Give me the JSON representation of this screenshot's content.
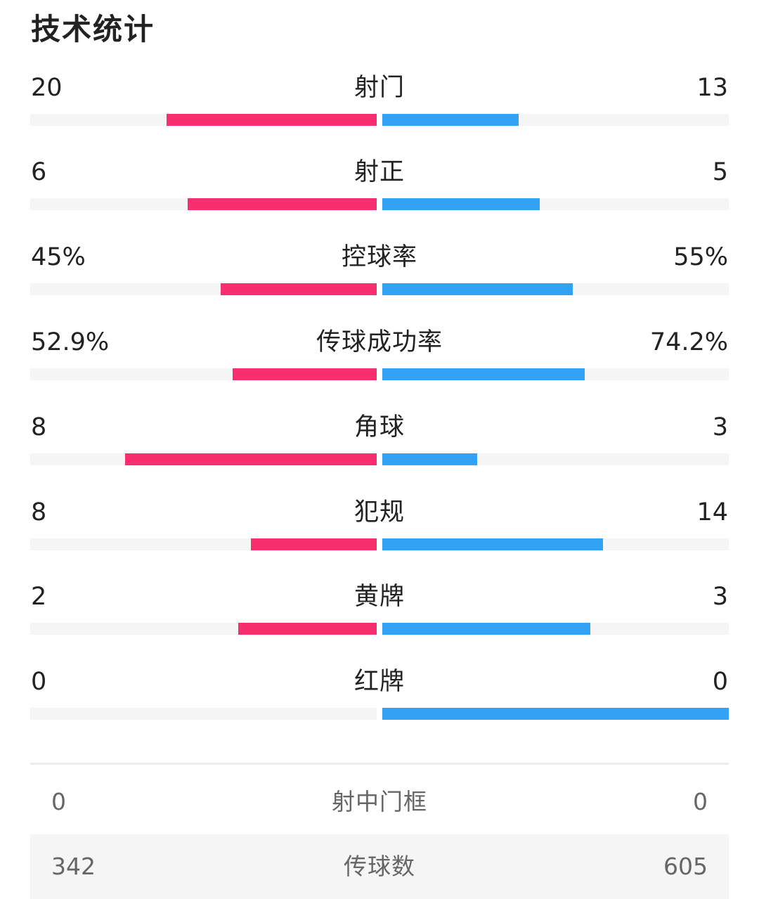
{
  "title": "技术统计",
  "colors": {
    "home": "#f82f6e",
    "away": "#33a2f5",
    "track": "#f5f5f5"
  },
  "stats": [
    {
      "label": "射门",
      "left": "20",
      "right": "13",
      "left_fraction": 0.606,
      "right_fraction": 0.394
    },
    {
      "label": "射正",
      "left": "6",
      "right": "5",
      "left_fraction": 0.545,
      "right_fraction": 0.455
    },
    {
      "label": "控球率",
      "left": "45%",
      "right": "55%",
      "left_fraction": 0.45,
      "right_fraction": 0.55
    },
    {
      "label": "传球成功率",
      "left": "52.9%",
      "right": "74.2%",
      "left_fraction": 0.416,
      "right_fraction": 0.584
    },
    {
      "label": "角球",
      "left": "8",
      "right": "3",
      "left_fraction": 0.727,
      "right_fraction": 0.273
    },
    {
      "label": "犯规",
      "left": "8",
      "right": "14",
      "left_fraction": 0.364,
      "right_fraction": 0.636
    },
    {
      "label": "黄牌",
      "left": "2",
      "right": "3",
      "left_fraction": 0.4,
      "right_fraction": 0.6
    },
    {
      "label": "红牌",
      "left": "0",
      "right": "0",
      "left_fraction": 0.0,
      "right_fraction": 1.0
    }
  ],
  "extra": [
    {
      "label": "射中门框",
      "left": "0",
      "right": "0"
    },
    {
      "label": "传球数",
      "left": "342",
      "right": "605"
    }
  ]
}
